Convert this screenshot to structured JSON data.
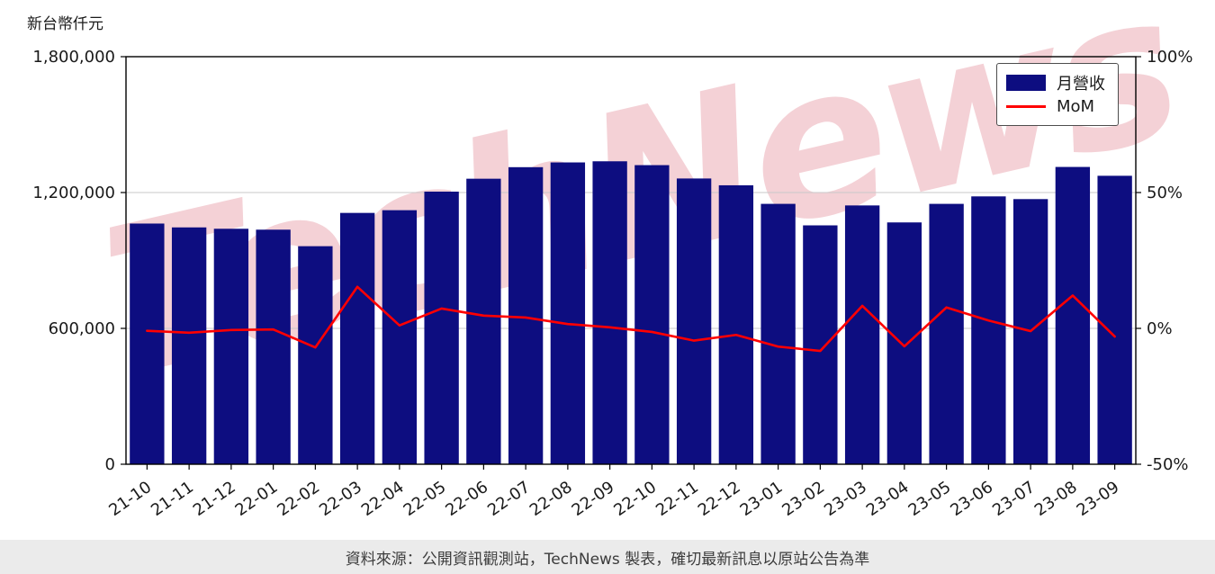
{
  "watermark": "TechNews",
  "footer": {
    "text": "資料來源：公開資訊觀測站，TechNews 製表，確切最新訊息以原站公告為準"
  },
  "chart_data": {
    "type": "bar",
    "title": "",
    "y_left_label": "新台幣仟元",
    "categories": [
      "21-10",
      "21-11",
      "21-12",
      "22-01",
      "22-02",
      "22-03",
      "22-04",
      "22-05",
      "22-06",
      "22-07",
      "22-08",
      "22-09",
      "22-10",
      "22-11",
      "22-12",
      "23-01",
      "23-02",
      "23-03",
      "23-04",
      "23-05",
      "23-06",
      "23-07",
      "23-08",
      "23-09"
    ],
    "series": [
      {
        "name": "月營收",
        "type": "bar",
        "axis": "left",
        "color": "#0d0d80",
        "values": [
          1063000,
          1046000,
          1040000,
          1036000,
          963000,
          1110000,
          1122000,
          1204000,
          1261000,
          1312000,
          1333000,
          1338000,
          1321000,
          1262000,
          1232000,
          1150000,
          1055000,
          1143000,
          1068000,
          1150000,
          1183000,
          1171000,
          1313000,
          1274000
        ]
      },
      {
        "name": "MoM",
        "type": "line",
        "axis": "right",
        "color": "#ff0000",
        "values": [
          -0.9,
          -1.6,
          -0.6,
          -0.4,
          -7.0,
          15.3,
          1.1,
          7.3,
          4.7,
          4.0,
          1.6,
          0.4,
          -1.3,
          -4.5,
          -2.4,
          -6.7,
          -8.3,
          8.3,
          -6.6,
          7.7,
          2.9,
          -1.0,
          12.1,
          -3.0
        ]
      }
    ],
    "left_axis": {
      "min": 0,
      "max": 1800000,
      "tick_values": [
        0,
        600000,
        1200000,
        1800000
      ],
      "tick_labels": [
        "0",
        "600,000",
        "1,200,000",
        "1,800,000"
      ]
    },
    "right_axis": {
      "min": -50,
      "max": 100,
      "tick_values": [
        -50,
        0,
        50,
        100
      ],
      "tick_labels": [
        "-50%",
        "0%",
        "50%",
        "100%"
      ]
    },
    "legend_position": "top-right",
    "grid": true
  }
}
